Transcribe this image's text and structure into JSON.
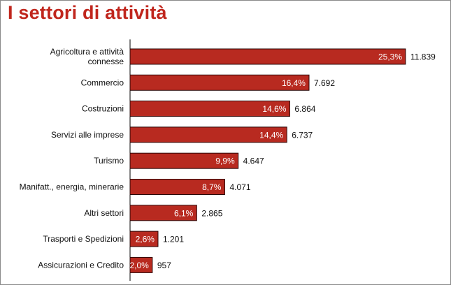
{
  "title": "I settori di attività",
  "colors": {
    "title": "#c0261d",
    "bar_fill": "#b82a20",
    "bar_stroke": "#2a0808",
    "axis": "#000000"
  },
  "chart_data": {
    "type": "bar",
    "orientation": "horizontal",
    "title": "I settori di attività",
    "xlabel": "",
    "ylabel": "",
    "grid": false,
    "legend": "none",
    "xlim": [
      0,
      11839
    ],
    "categories": [
      [
        "Agricoltura e attività",
        "connesse"
      ],
      [
        "Commercio"
      ],
      [
        "Costruzioni"
      ],
      [
        "Servizi alle imprese"
      ],
      [
        "Turismo"
      ],
      [
        "Manifatt., energia, minerarie"
      ],
      [
        "Altri settori"
      ],
      [
        "Trasporti e Spedizioni"
      ],
      [
        "Assicurazioni e Credito"
      ]
    ],
    "values": [
      11839,
      7692,
      6864,
      6737,
      4647,
      4071,
      2865,
      1201,
      957
    ],
    "value_labels": [
      "11.839",
      "7.692",
      "6.864",
      "6.737",
      "4.647",
      "4.071",
      "2.865",
      "1.201",
      "957"
    ],
    "percent_labels": [
      "25,3%",
      "16,4%",
      "14,6%",
      "14,4%",
      "9,9%",
      "8,7%",
      "6,1%",
      "2,6%",
      "2,0%"
    ]
  }
}
